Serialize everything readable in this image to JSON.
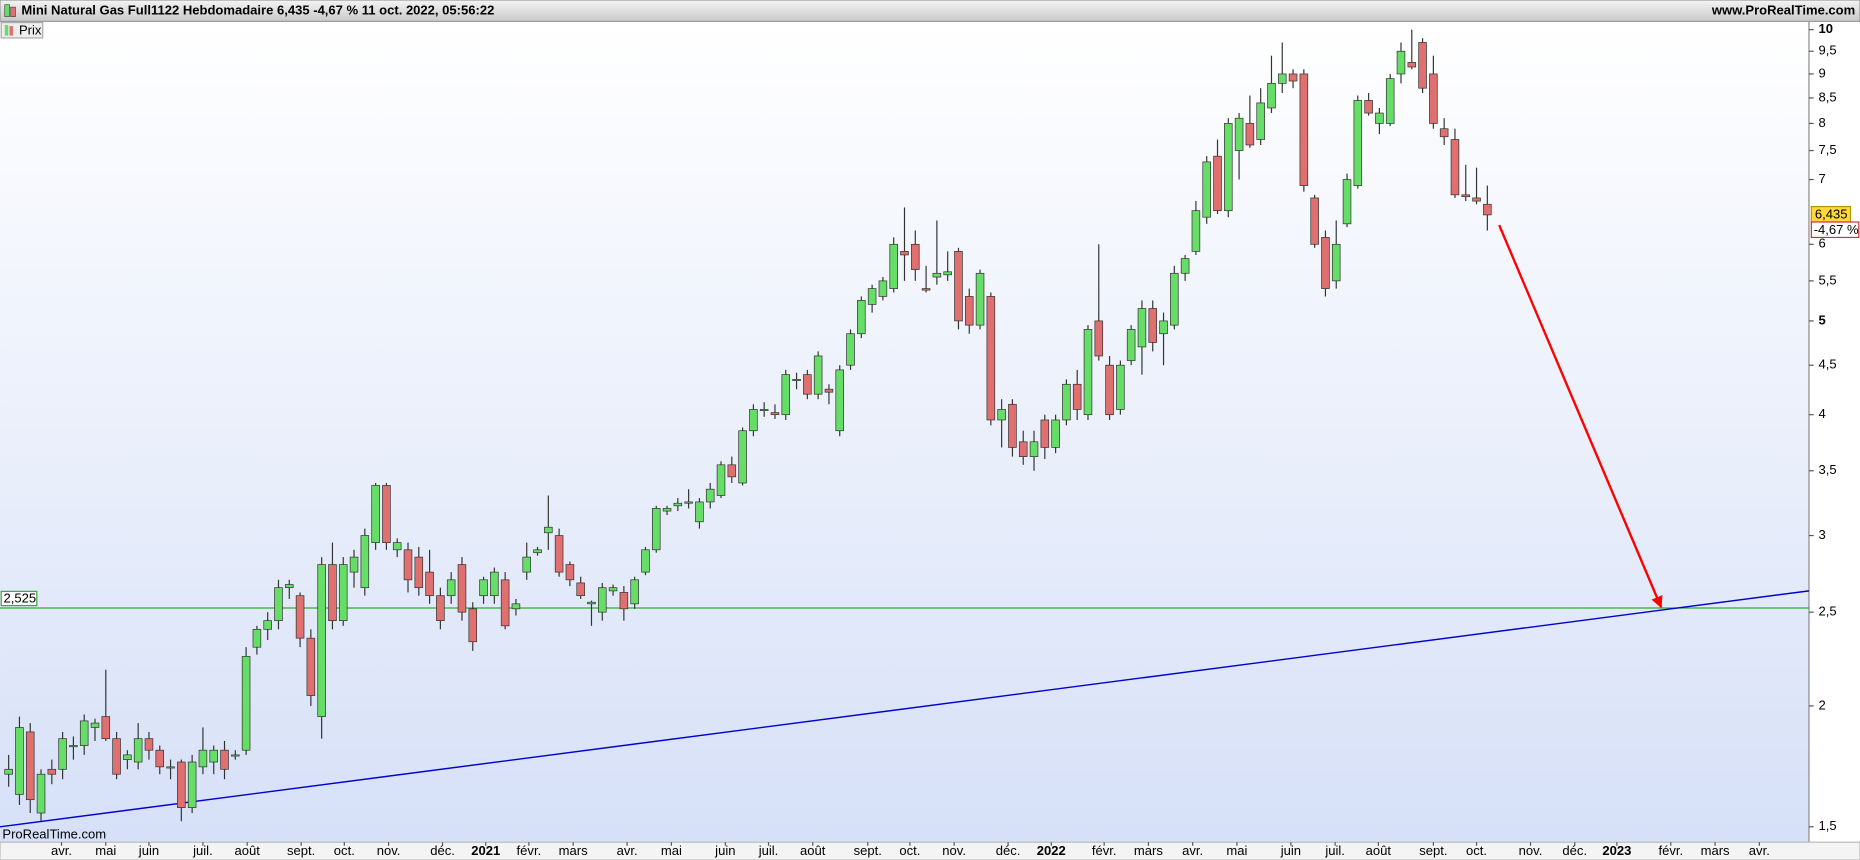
{
  "chart_data": {
    "type": "candlestick",
    "title": "Mini Natural Gas Full1122 Hebdomadaire 6,435 -4,67 % 11 oct. 2022, 05:56:22",
    "site": "www.ProRealTime.com",
    "watermark": "ProRealTime.com",
    "legend": "Prix",
    "last_price_label": "6,435",
    "change_label": "-4,67 %",
    "log_scale": true,
    "up_color": "#66dd66",
    "down_color": "#e07070",
    "open": [
      1.7,
      1.62,
      1.88,
      1.55,
      1.72,
      1.72,
      1.82,
      1.82,
      1.9,
      1.95,
      1.85,
      1.76,
      1.75,
      1.85,
      1.8,
      1.73,
      1.75,
      1.57,
      1.73,
      1.75,
      1.8,
      1.78,
      1.8,
      2.3,
      2.4,
      2.45,
      2.65,
      2.6,
      2.35,
      1.95,
      2.8,
      2.45,
      2.75,
      2.65,
      2.95,
      3.38,
      2.9,
      2.9,
      2.85,
      2.75,
      2.6,
      2.6,
      2.8,
      2.52,
      2.6,
      2.6,
      2.7,
      2.52,
      2.75,
      2.88,
      3.02,
      3.0,
      2.8,
      2.68,
      2.55,
      2.5,
      2.63,
      2.62,
      2.55,
      2.75,
      2.9,
      3.18,
      3.22,
      3.24,
      3.1,
      3.25,
      3.3,
      3.55,
      3.4,
      3.85,
      4.05,
      4.02,
      4.0,
      4.35,
      4.4,
      4.2,
      4.25,
      3.85,
      4.5,
      4.85,
      5.2,
      5.3,
      5.4,
      5.9,
      6.0,
      5.4,
      5.55,
      5.58,
      5.9,
      5.3,
      4.95,
      5.3,
      3.95,
      4.1,
      3.75,
      3.62,
      3.95,
      3.7,
      3.95,
      4.3,
      4.0,
      5.0,
      4.5,
      4.05,
      4.55,
      4.7,
      5.15,
      4.85,
      4.95,
      5.6,
      5.9,
      6.4,
      7.4,
      6.5,
      7.5,
      8.0,
      7.7,
      8.3,
      8.8,
      9.0,
      9.0,
      6.7,
      6.1,
      5.5,
      6.3,
      6.9,
      8.45,
      8.0,
      8.0,
      9.0,
      9.25,
      9.7,
      9.0,
      7.9,
      7.7,
      6.75,
      6.7,
      6.6
    ],
    "high": [
      1.78,
      1.95,
      1.92,
      1.72,
      1.76,
      1.88,
      1.86,
      1.96,
      1.94,
      2.18,
      1.88,
      1.8,
      1.92,
      1.88,
      1.82,
      1.76,
      1.76,
      1.78,
      1.9,
      1.82,
      1.84,
      1.8,
      2.3,
      2.42,
      2.5,
      2.7,
      2.7,
      2.62,
      2.4,
      2.85,
      2.95,
      2.85,
      2.9,
      3.05,
      3.4,
      3.4,
      2.98,
      2.95,
      2.92,
      2.9,
      2.65,
      2.75,
      2.85,
      2.56,
      2.72,
      2.78,
      2.75,
      2.58,
      2.95,
      2.92,
      3.3,
      3.05,
      2.82,
      2.72,
      2.57,
      2.68,
      2.67,
      2.66,
      2.72,
      2.92,
      3.22,
      3.22,
      3.28,
      3.35,
      3.28,
      3.4,
      3.58,
      3.62,
      3.88,
      4.1,
      4.12,
      4.1,
      4.45,
      4.42,
      4.45,
      4.65,
      4.3,
      4.5,
      4.9,
      5.3,
      5.45,
      5.55,
      6.1,
      6.55,
      6.2,
      5.7,
      6.35,
      5.9,
      5.95,
      5.4,
      5.65,
      5.35,
      4.15,
      4.15,
      3.85,
      3.85,
      4.0,
      4.0,
      4.35,
      4.45,
      4.95,
      6.0,
      4.6,
      4.55,
      4.95,
      5.25,
      5.25,
      5.1,
      5.7,
      5.85,
      6.65,
      7.4,
      7.7,
      8.1,
      8.2,
      8.55,
      8.7,
      9.4,
      9.7,
      9.1,
      9.1,
      6.75,
      6.2,
      6.35,
      7.1,
      8.55,
      8.6,
      8.3,
      9.0,
      9.7,
      10.0,
      9.8,
      9.4,
      8.1,
      7.9,
      7.25,
      7.2,
      6.9
    ],
    "low": [
      1.65,
      1.58,
      1.55,
      1.52,
      1.66,
      1.68,
      1.76,
      1.78,
      1.84,
      1.84,
      1.68,
      1.72,
      1.72,
      1.76,
      1.7,
      1.68,
      1.52,
      1.55,
      1.7,
      1.7,
      1.68,
      1.76,
      1.78,
      2.26,
      2.34,
      2.4,
      2.58,
      2.3,
      2.0,
      1.85,
      2.4,
      2.42,
      2.65,
      2.6,
      2.9,
      2.9,
      2.85,
      2.62,
      2.6,
      2.55,
      2.4,
      2.55,
      2.45,
      2.28,
      2.55,
      2.55,
      2.4,
      2.48,
      2.7,
      2.86,
      2.9,
      2.72,
      2.66,
      2.58,
      2.42,
      2.45,
      2.6,
      2.45,
      2.52,
      2.73,
      2.88,
      3.15,
      3.18,
      3.2,
      3.05,
      3.2,
      3.28,
      3.4,
      3.38,
      3.8,
      3.98,
      3.96,
      3.95,
      4.25,
      4.15,
      4.15,
      4.1,
      3.8,
      4.45,
      4.8,
      5.1,
      5.25,
      5.35,
      5.5,
      5.5,
      5.35,
      5.45,
      5.5,
      4.9,
      4.85,
      4.9,
      3.9,
      3.7,
      3.62,
      3.55,
      3.5,
      3.6,
      3.65,
      3.9,
      3.95,
      3.95,
      4.55,
      3.95,
      4.0,
      4.5,
      4.4,
      4.65,
      4.5,
      4.9,
      5.5,
      5.85,
      6.3,
      6.45,
      6.4,
      7.0,
      7.55,
      7.6,
      8.2,
      8.6,
      8.7,
      6.8,
      5.95,
      5.3,
      5.4,
      6.25,
      6.85,
      8.15,
      7.8,
      7.95,
      8.8,
      9.1,
      8.6,
      7.9,
      7.6,
      6.7,
      6.65,
      6.6,
      6.2
    ],
    "close": [
      1.72,
      1.9,
      1.6,
      1.7,
      1.7,
      1.85,
      1.82,
      1.93,
      1.92,
      1.85,
      1.7,
      1.78,
      1.85,
      1.8,
      1.73,
      1.73,
      1.57,
      1.75,
      1.8,
      1.8,
      1.72,
      1.78,
      2.25,
      2.4,
      2.45,
      2.65,
      2.67,
      2.35,
      2.05,
      2.8,
      2.45,
      2.8,
      2.85,
      3.0,
      3.38,
      2.95,
      2.95,
      2.7,
      2.65,
      2.6,
      2.45,
      2.7,
      2.5,
      2.33,
      2.7,
      2.75,
      2.42,
      2.55,
      2.85,
      2.9,
      3.06,
      2.75,
      2.7,
      2.6,
      2.56,
      2.65,
      2.65,
      2.52,
      2.7,
      2.9,
      3.2,
      3.2,
      3.24,
      3.25,
      3.25,
      3.35,
      3.55,
      3.45,
      3.85,
      4.05,
      4.05,
      4.0,
      4.4,
      4.35,
      4.2,
      4.6,
      4.22,
      4.45,
      4.85,
      5.25,
      5.4,
      5.5,
      6.0,
      5.85,
      5.65,
      5.38,
      5.6,
      5.62,
      5.0,
      4.95,
      5.6,
      3.95,
      4.05,
      3.7,
      3.62,
      3.75,
      3.7,
      3.95,
      4.3,
      4.05,
      4.9,
      4.6,
      4.0,
      4.5,
      4.9,
      5.15,
      4.75,
      5.0,
      5.6,
      5.8,
      6.5,
      7.3,
      6.5,
      8.0,
      8.1,
      7.6,
      8.4,
      8.8,
      9.0,
      8.85,
      6.9,
      6.0,
      5.4,
      6.0,
      7.0,
      8.45,
      8.2,
      8.2,
      8.9,
      9.5,
      9.15,
      8.7,
      8.0,
      7.75,
      6.75,
      6.72,
      6.65,
      6.435
    ],
    "xlim": [
      -0.8,
      166.8
    ],
    "xticks": [
      {
        "value": 4.9,
        "label": "avr."
      },
      {
        "value": 9.0,
        "label": "mai"
      },
      {
        "value": 13.0,
        "label": "juin"
      },
      {
        "value": 18.0,
        "label": "juil."
      },
      {
        "value": 22.1,
        "label": "août"
      },
      {
        "value": 27.1,
        "label": "sept."
      },
      {
        "value": 31.1,
        "label": "oct."
      },
      {
        "value": 35.2,
        "label": "nov."
      },
      {
        "value": 40.2,
        "label": "déc."
      },
      {
        "value": 44.2,
        "label": "2021"
      },
      {
        "value": 48.2,
        "label": "févr."
      },
      {
        "value": 52.3,
        "label": "mars"
      },
      {
        "value": 57.3,
        "label": "avr."
      },
      {
        "value": 61.4,
        "label": "mai"
      },
      {
        "value": 66.4,
        "label": "juin"
      },
      {
        "value": 70.4,
        "label": "juil."
      },
      {
        "value": 74.5,
        "label": "août"
      },
      {
        "value": 79.6,
        "label": "sept."
      },
      {
        "value": 83.5,
        "label": "oct."
      },
      {
        "value": 87.6,
        "label": "nov."
      },
      {
        "value": 92.6,
        "label": "déc."
      },
      {
        "value": 96.6,
        "label": "2022"
      },
      {
        "value": 101.5,
        "label": "févr."
      },
      {
        "value": 105.6,
        "label": "mars"
      },
      {
        "value": 109.7,
        "label": "avr."
      },
      {
        "value": 113.8,
        "label": "mai"
      },
      {
        "value": 118.8,
        "label": "juin"
      },
      {
        "value": 122.9,
        "label": "juil."
      },
      {
        "value": 126.9,
        "label": "août"
      },
      {
        "value": 132.0,
        "label": "sept."
      },
      {
        "value": 136.0,
        "label": "oct."
      },
      {
        "value": 141.0,
        "label": "nov."
      },
      {
        "value": 145.1,
        "label": "déc."
      },
      {
        "value": 149.0,
        "label": "2023"
      },
      {
        "value": 154.0,
        "label": "févr."
      },
      {
        "value": 158.1,
        "label": "mars"
      },
      {
        "value": 162.2,
        "label": "avr."
      }
    ],
    "ylim": [
      1.446,
      10.2
    ],
    "yticks": [
      {
        "value": 1.5,
        "label": "1,5"
      },
      2,
      {
        "value": 2.5,
        "label": "2,5"
      },
      3,
      {
        "value": 3.5,
        "label": "3,5"
      },
      4,
      {
        "value": 4.5,
        "label": "4,5"
      },
      5,
      {
        "value": 5.5,
        "label": "5,5"
      },
      6,
      7,
      {
        "value": 7.5,
        "label": "7,5"
      },
      8,
      {
        "value": 8.5,
        "label": "8,5"
      },
      9,
      {
        "value": 9.5,
        "label": "9,5"
      },
      10
    ],
    "level": {
      "value": 2.525,
      "label": "2,525",
      "color": "#33aa33"
    },
    "trendline": {
      "color": "#0000cc",
      "from": [
        -0.8,
        1.5
      ],
      "to": [
        166.8,
        2.63
      ]
    },
    "arrow": {
      "color": "#ff0000",
      "from": [
        138.1,
        6.28
      ],
      "to": [
        153.1,
        2.53
      ]
    }
  }
}
